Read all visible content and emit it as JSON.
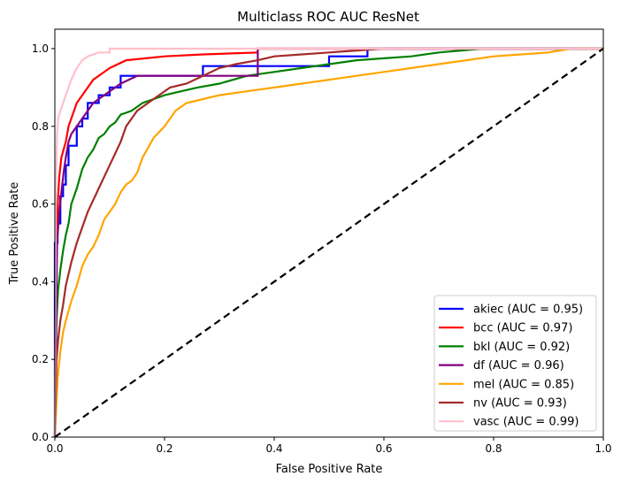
{
  "chart_data": {
    "type": "line",
    "title": "Multiclass ROC AUC ResNet",
    "xlabel": "False Positive Rate",
    "ylabel": "True Positive Rate",
    "xlim": [
      0.0,
      1.0
    ],
    "ylim": [
      0.0,
      1.05
    ],
    "xticks": [
      "0.0",
      "0.2",
      "0.4",
      "0.6",
      "0.8",
      "1.0"
    ],
    "yticks": [
      "0.0",
      "0.2",
      "0.4",
      "0.6",
      "0.8",
      "1.0"
    ],
    "grid": false,
    "legend_position": "lower-right",
    "diagonal": {
      "x": [
        0,
        1
      ],
      "y": [
        0,
        1
      ],
      "color": "#000000",
      "style": "dashed"
    },
    "series": [
      {
        "name": "akiec (AUC = 0.95)",
        "color": "#0000ff",
        "x": [
          0,
          0,
          0.005,
          0.005,
          0.01,
          0.01,
          0.015,
          0.015,
          0.02,
          0.02,
          0.025,
          0.025,
          0.04,
          0.04,
          0.05,
          0.05,
          0.06,
          0.06,
          0.08,
          0.08,
          0.1,
          0.1,
          0.12,
          0.12,
          0.27,
          0.27,
          0.5,
          0.5,
          0.57,
          0.57,
          1.0
        ],
        "y": [
          0,
          0.5,
          0.5,
          0.55,
          0.55,
          0.62,
          0.62,
          0.65,
          0.65,
          0.7,
          0.7,
          0.75,
          0.75,
          0.8,
          0.8,
          0.82,
          0.82,
          0.86,
          0.86,
          0.88,
          0.88,
          0.9,
          0.9,
          0.93,
          0.93,
          0.955,
          0.955,
          0.98,
          0.98,
          1.0,
          1.0
        ]
      },
      {
        "name": "bcc (AUC = 0.97)",
        "color": "#ff0000",
        "x": [
          0,
          0.002,
          0.004,
          0.006,
          0.008,
          0.012,
          0.016,
          0.02,
          0.025,
          0.03,
          0.035,
          0.04,
          0.05,
          0.06,
          0.07,
          0.085,
          0.1,
          0.13,
          0.2,
          0.27,
          0.37,
          0.37,
          1.0
        ],
        "y": [
          0,
          0.45,
          0.55,
          0.62,
          0.67,
          0.72,
          0.74,
          0.76,
          0.8,
          0.82,
          0.84,
          0.86,
          0.88,
          0.9,
          0.92,
          0.935,
          0.95,
          0.97,
          0.98,
          0.985,
          0.99,
          1.0,
          1.0
        ]
      },
      {
        "name": "bkl (AUC = 0.92)",
        "color": "#008000",
        "x": [
          0,
          0.003,
          0.006,
          0.01,
          0.015,
          0.02,
          0.025,
          0.03,
          0.04,
          0.05,
          0.06,
          0.07,
          0.08,
          0.09,
          0.1,
          0.11,
          0.12,
          0.14,
          0.16,
          0.18,
          0.2,
          0.23,
          0.26,
          0.3,
          0.35,
          0.4,
          0.45,
          0.5,
          0.55,
          0.6,
          0.65,
          0.7,
          0.78,
          1.0
        ],
        "y": [
          0,
          0.3,
          0.38,
          0.43,
          0.48,
          0.52,
          0.55,
          0.6,
          0.64,
          0.69,
          0.72,
          0.74,
          0.77,
          0.78,
          0.8,
          0.81,
          0.83,
          0.84,
          0.86,
          0.87,
          0.88,
          0.89,
          0.9,
          0.91,
          0.93,
          0.94,
          0.95,
          0.96,
          0.97,
          0.975,
          0.98,
          0.99,
          1.0,
          1.0
        ]
      },
      {
        "name": "df (AUC = 0.96)",
        "color": "#800080",
        "x": [
          0,
          0.004,
          0.008,
          0.012,
          0.016,
          0.02,
          0.025,
          0.03,
          0.04,
          0.05,
          0.06,
          0.07,
          0.08,
          0.09,
          0.1,
          0.12,
          0.15,
          0.37,
          0.37,
          1.0
        ],
        "y": [
          0,
          0.5,
          0.58,
          0.63,
          0.68,
          0.72,
          0.76,
          0.78,
          0.8,
          0.82,
          0.84,
          0.86,
          0.87,
          0.88,
          0.89,
          0.91,
          0.93,
          0.93,
          1.0,
          1.0
        ]
      },
      {
        "name": "mel (AUC = 0.85)",
        "color": "#ffa500",
        "x": [
          0,
          0.005,
          0.01,
          0.015,
          0.02,
          0.03,
          0.04,
          0.05,
          0.06,
          0.07,
          0.08,
          0.09,
          0.1,
          0.11,
          0.12,
          0.13,
          0.14,
          0.15,
          0.16,
          0.18,
          0.2,
          0.22,
          0.24,
          0.27,
          0.3,
          0.35,
          0.4,
          0.45,
          0.5,
          0.55,
          0.6,
          0.65,
          0.7,
          0.75,
          0.8,
          0.85,
          0.9,
          0.94,
          1.0
        ],
        "y": [
          0,
          0.15,
          0.22,
          0.27,
          0.3,
          0.35,
          0.39,
          0.44,
          0.47,
          0.49,
          0.52,
          0.56,
          0.58,
          0.6,
          0.63,
          0.65,
          0.66,
          0.68,
          0.72,
          0.77,
          0.8,
          0.84,
          0.86,
          0.87,
          0.88,
          0.89,
          0.9,
          0.91,
          0.92,
          0.93,
          0.94,
          0.95,
          0.96,
          0.97,
          0.98,
          0.985,
          0.99,
          1.0,
          1.0
        ]
      },
      {
        "name": "nv (AUC = 0.93)",
        "color": "#a52a2a",
        "x": [
          0,
          0.003,
          0.006,
          0.01,
          0.015,
          0.02,
          0.03,
          0.04,
          0.05,
          0.06,
          0.07,
          0.08,
          0.09,
          0.1,
          0.11,
          0.12,
          0.13,
          0.14,
          0.15,
          0.17,
          0.19,
          0.21,
          0.24,
          0.27,
          0.3,
          0.33,
          0.37,
          0.4,
          0.45,
          0.5,
          0.55,
          0.6,
          0.7,
          0.8,
          1.0
        ],
        "y": [
          0,
          0.2,
          0.25,
          0.3,
          0.34,
          0.39,
          0.45,
          0.5,
          0.54,
          0.58,
          0.61,
          0.64,
          0.67,
          0.7,
          0.73,
          0.76,
          0.8,
          0.82,
          0.84,
          0.86,
          0.88,
          0.9,
          0.91,
          0.93,
          0.95,
          0.96,
          0.97,
          0.98,
          0.985,
          0.99,
          0.995,
          1.0,
          1.0,
          1.0,
          1.0
        ]
      },
      {
        "name": "vasc (AUC = 0.99)",
        "color": "#ffc0cb",
        "x": [
          0,
          0.002,
          0.004,
          0.006,
          0.01,
          0.015,
          0.02,
          0.025,
          0.03,
          0.04,
          0.05,
          0.06,
          0.08,
          0.1,
          0.1,
          1.0
        ],
        "y": [
          0,
          0.65,
          0.78,
          0.82,
          0.84,
          0.86,
          0.88,
          0.9,
          0.92,
          0.95,
          0.97,
          0.98,
          0.99,
          0.99,
          1.0,
          1.0
        ]
      }
    ]
  }
}
